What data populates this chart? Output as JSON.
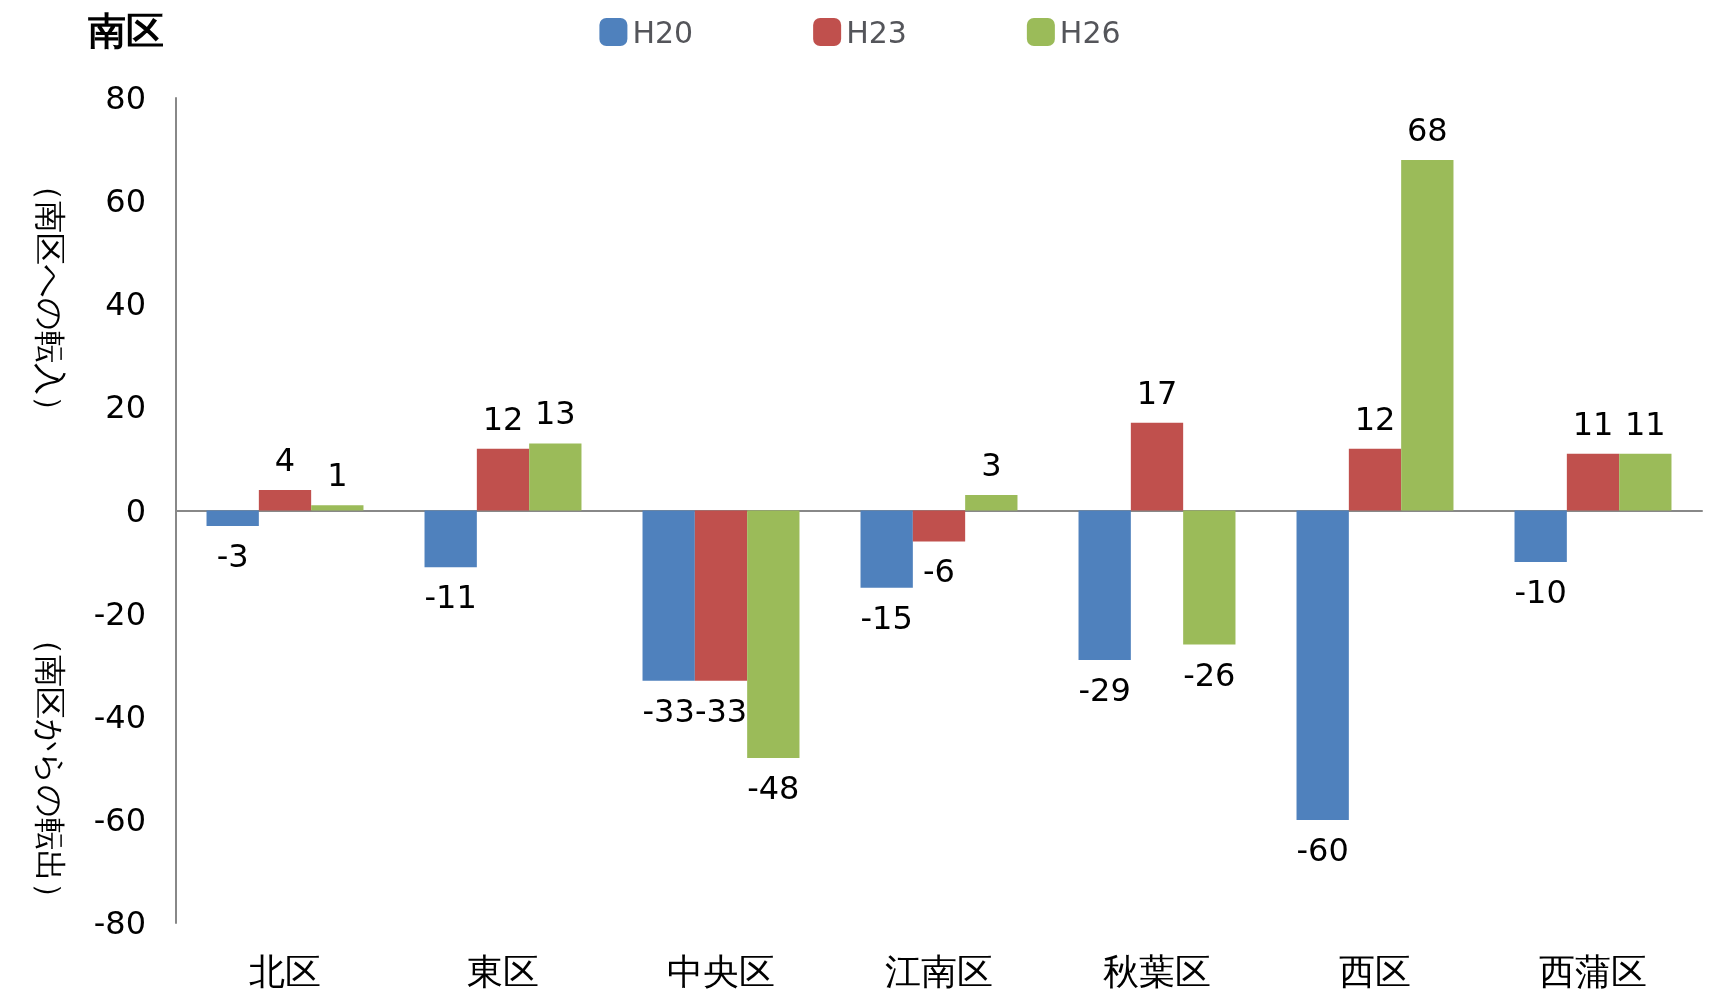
{
  "chart_data": {
    "type": "bar",
    "title": "南区",
    "ylabel": "（南区への転入）",
    "annotations": [
      "（南区からの転出）"
    ],
    "categories": [
      "北区",
      "東区",
      "中央区",
      "江南区",
      "秋葉区",
      "西区",
      "西蒲区"
    ],
    "series": [
      {
        "name": "H20",
        "color": "#4f81bd",
        "values": [
          -3,
          -11,
          -33,
          -15,
          -29,
          -60,
          -10
        ]
      },
      {
        "name": "H23",
        "color": "#c0504d",
        "values": [
          4,
          12,
          -33,
          -6,
          17,
          12,
          11
        ]
      },
      {
        "name": "H26",
        "color": "#9bbb59",
        "values": [
          1,
          13,
          -48,
          3,
          -26,
          68,
          11
        ]
      }
    ],
    "ylim": [
      -80,
      80
    ],
    "yticks": [
      -80,
      -60,
      -40,
      -20,
      0,
      20,
      40,
      60,
      80
    ],
    "legend": "top",
    "data_labels": true
  }
}
